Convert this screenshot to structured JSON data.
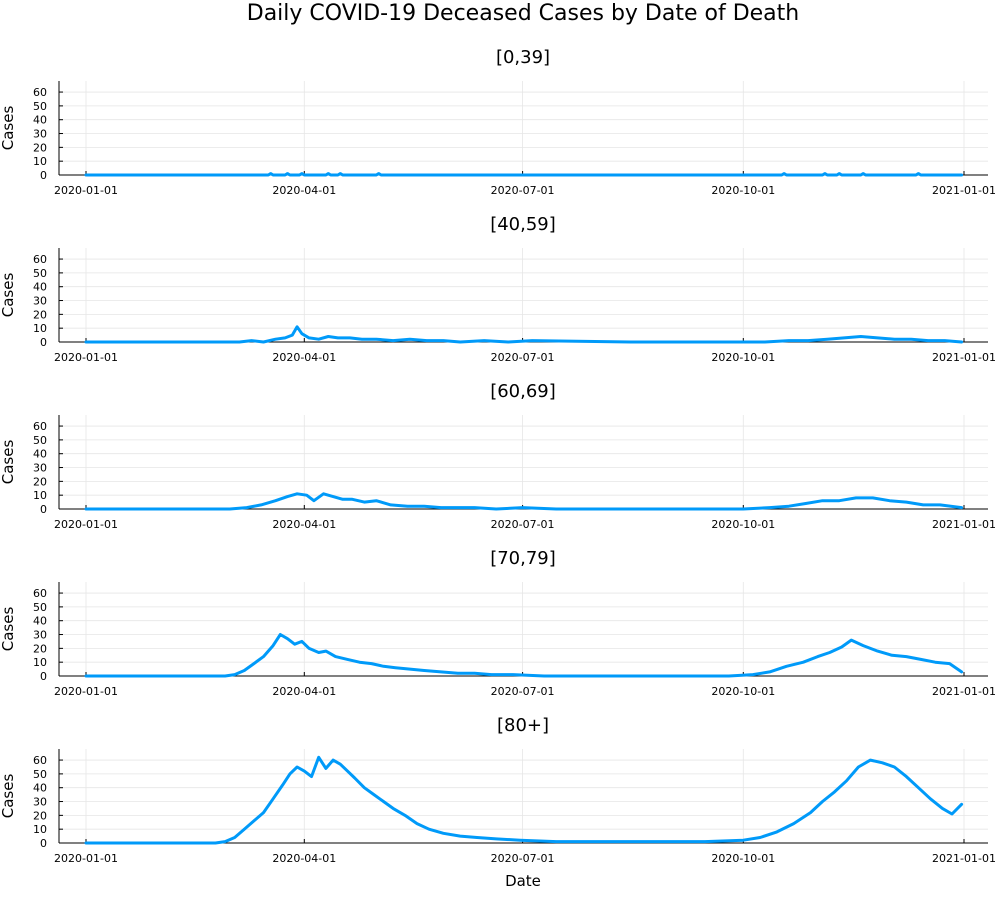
{
  "title": "Daily COVID-19 Deceased Cases by Date of Death",
  "xlabel": "Date",
  "ylabel": "Cases",
  "series_color": "#009af9",
  "chart_data": [
    {
      "type": "line",
      "title": "[0,39]",
      "ylabel": "Cases",
      "xlabel": "",
      "xlim": [
        "2020-01-01",
        "2021-01-01"
      ],
      "x_ticks": [
        "2020-01-01",
        "2020-04-01",
        "2020-07-01",
        "2020-10-01",
        "2021-01-01"
      ],
      "ylim": [
        0,
        68
      ],
      "y_ticks": [
        0,
        10,
        20,
        30,
        40,
        50,
        60
      ],
      "grid": true,
      "series": [
        {
          "x": [
            "2020-01-01",
            "2020-03-17",
            "2020-03-18",
            "2020-03-19",
            "2020-03-24",
            "2020-03-25",
            "2020-03-26",
            "2020-03-30",
            "2020-03-31",
            "2020-04-01",
            "2020-04-10",
            "2020-04-11",
            "2020-04-12",
            "2020-04-15",
            "2020-04-16",
            "2020-04-17",
            "2020-05-01",
            "2020-05-02",
            "2020-05-03",
            "2020-10-17",
            "2020-10-18",
            "2020-10-19",
            "2020-11-03",
            "2020-11-04",
            "2020-11-05",
            "2020-11-09",
            "2020-11-10",
            "2020-11-11",
            "2020-11-19",
            "2020-11-20",
            "2020-11-21",
            "2020-12-12",
            "2020-12-13",
            "2020-12-14",
            "2020-12-31"
          ],
          "y": [
            0,
            0,
            1,
            0,
            0,
            1,
            0,
            0,
            1,
            0,
            0,
            1,
            0,
            0,
            1,
            0,
            0,
            1,
            0,
            0,
            1,
            0,
            0,
            1,
            0,
            0,
            1,
            0,
            0,
            1,
            0,
            0,
            1,
            0,
            0
          ]
        }
      ]
    },
    {
      "type": "line",
      "title": "[40,59]",
      "ylabel": "Cases",
      "xlabel": "",
      "xlim": [
        "2020-01-01",
        "2021-01-01"
      ],
      "x_ticks": [
        "2020-01-01",
        "2020-04-01",
        "2020-07-01",
        "2020-10-01",
        "2021-01-01"
      ],
      "ylim": [
        0,
        68
      ],
      "y_ticks": [
        0,
        10,
        20,
        30,
        40,
        50,
        60
      ],
      "grid": true,
      "series": [
        {
          "x": [
            "2020-01-01",
            "2020-03-05",
            "2020-03-10",
            "2020-03-15",
            "2020-03-20",
            "2020-03-24",
            "2020-03-27",
            "2020-03-29",
            "2020-03-31",
            "2020-04-03",
            "2020-04-07",
            "2020-04-11",
            "2020-04-15",
            "2020-04-20",
            "2020-04-25",
            "2020-05-01",
            "2020-05-08",
            "2020-05-15",
            "2020-05-22",
            "2020-05-29",
            "2020-06-05",
            "2020-06-15",
            "2020-06-25",
            "2020-07-05",
            "2020-08-15",
            "2020-09-20",
            "2020-10-01",
            "2020-10-10",
            "2020-10-20",
            "2020-10-28",
            "2020-11-05",
            "2020-11-12",
            "2020-11-19",
            "2020-11-26",
            "2020-12-03",
            "2020-12-10",
            "2020-12-17",
            "2020-12-24",
            "2020-12-31"
          ],
          "y": [
            0,
            0,
            1,
            0,
            2,
            3,
            5,
            11,
            6,
            3,
            2,
            4,
            3,
            3,
            2,
            2,
            1,
            2,
            1,
            1,
            0,
            1,
            0,
            1,
            0,
            0,
            0,
            0,
            1,
            1,
            2,
            3,
            4,
            3,
            2,
            2,
            1,
            1,
            0
          ]
        }
      ]
    },
    {
      "type": "line",
      "title": "[60,69]",
      "ylabel": "Cases",
      "xlabel": "",
      "xlim": [
        "2020-01-01",
        "2021-01-01"
      ],
      "x_ticks": [
        "2020-01-01",
        "2020-04-01",
        "2020-07-01",
        "2020-10-01",
        "2021-01-01"
      ],
      "ylim": [
        0,
        68
      ],
      "y_ticks": [
        0,
        10,
        20,
        30,
        40,
        50,
        60
      ],
      "grid": true,
      "series": [
        {
          "x": [
            "2020-01-01",
            "2020-03-01",
            "2020-03-08",
            "2020-03-14",
            "2020-03-20",
            "2020-03-25",
            "2020-03-29",
            "2020-04-02",
            "2020-04-05",
            "2020-04-09",
            "2020-04-13",
            "2020-04-17",
            "2020-04-21",
            "2020-04-26",
            "2020-05-01",
            "2020-05-07",
            "2020-05-14",
            "2020-05-21",
            "2020-05-28",
            "2020-06-04",
            "2020-06-11",
            "2020-06-20",
            "2020-07-01",
            "2020-07-15",
            "2020-08-15",
            "2020-09-20",
            "2020-10-01",
            "2020-10-12",
            "2020-10-20",
            "2020-10-27",
            "2020-11-03",
            "2020-11-10",
            "2020-11-17",
            "2020-11-24",
            "2020-12-01",
            "2020-12-08",
            "2020-12-15",
            "2020-12-22",
            "2020-12-31"
          ],
          "y": [
            0,
            0,
            1,
            3,
            6,
            9,
            11,
            10,
            6,
            11,
            9,
            7,
            7,
            5,
            6,
            3,
            2,
            2,
            1,
            1,
            1,
            0,
            1,
            0,
            0,
            0,
            0,
            1,
            2,
            4,
            6,
            6,
            8,
            8,
            6,
            5,
            3,
            3,
            1
          ]
        }
      ]
    },
    {
      "type": "line",
      "title": "[70,79]",
      "ylabel": "Cases",
      "xlabel": "",
      "xlim": [
        "2020-01-01",
        "2021-01-01"
      ],
      "x_ticks": [
        "2020-01-01",
        "2020-04-01",
        "2020-07-01",
        "2020-10-01",
        "2021-01-01"
      ],
      "ylim": [
        0,
        68
      ],
      "y_ticks": [
        0,
        10,
        20,
        30,
        40,
        50,
        60
      ],
      "grid": true,
      "series": [
        {
          "x": [
            "2020-01-01",
            "2020-02-28",
            "2020-03-03",
            "2020-03-07",
            "2020-03-11",
            "2020-03-15",
            "2020-03-19",
            "2020-03-22",
            "2020-03-25",
            "2020-03-28",
            "2020-03-31",
            "2020-04-03",
            "2020-04-07",
            "2020-04-10",
            "2020-04-14",
            "2020-04-19",
            "2020-04-24",
            "2020-04-29",
            "2020-05-04",
            "2020-05-09",
            "2020-05-15",
            "2020-05-21",
            "2020-05-28",
            "2020-06-04",
            "2020-06-11",
            "2020-06-18",
            "2020-06-27",
            "2020-07-10",
            "2020-08-20",
            "2020-09-25",
            "2020-10-05",
            "2020-10-12",
            "2020-10-19",
            "2020-10-26",
            "2020-11-01",
            "2020-11-06",
            "2020-11-11",
            "2020-11-15",
            "2020-11-20",
            "2020-11-26",
            "2020-12-02",
            "2020-12-08",
            "2020-12-14",
            "2020-12-20",
            "2020-12-26",
            "2020-12-31"
          ],
          "y": [
            0,
            0,
            1,
            4,
            9,
            14,
            22,
            30,
            27,
            23,
            25,
            20,
            17,
            18,
            14,
            12,
            10,
            9,
            7,
            6,
            5,
            4,
            3,
            2,
            2,
            1,
            1,
            0,
            0,
            0,
            1,
            3,
            7,
            10,
            14,
            17,
            21,
            26,
            22,
            18,
            15,
            14,
            12,
            10,
            9,
            3
          ]
        }
      ]
    },
    {
      "type": "line",
      "title": "[80+]",
      "ylabel": "Cases",
      "xlabel": "Date",
      "xlim": [
        "2020-01-01",
        "2021-01-01"
      ],
      "x_ticks": [
        "2020-01-01",
        "2020-04-01",
        "2020-07-01",
        "2020-10-01",
        "2021-01-01"
      ],
      "ylim": [
        0,
        68
      ],
      "y_ticks": [
        0,
        10,
        20,
        30,
        40,
        50,
        60
      ],
      "grid": true,
      "series": [
        {
          "x": [
            "2020-01-01",
            "2020-02-24",
            "2020-02-28",
            "2020-03-03",
            "2020-03-07",
            "2020-03-11",
            "2020-03-15",
            "2020-03-19",
            "2020-03-23",
            "2020-03-26",
            "2020-03-29",
            "2020-04-01",
            "2020-04-04",
            "2020-04-07",
            "2020-04-10",
            "2020-04-13",
            "2020-04-16",
            "2020-04-19",
            "2020-04-22",
            "2020-04-26",
            "2020-04-30",
            "2020-05-04",
            "2020-05-08",
            "2020-05-13",
            "2020-05-18",
            "2020-05-23",
            "2020-05-29",
            "2020-06-05",
            "2020-06-12",
            "2020-06-20",
            "2020-06-30",
            "2020-07-15",
            "2020-08-15",
            "2020-09-15",
            "2020-10-01",
            "2020-10-08",
            "2020-10-15",
            "2020-10-22",
            "2020-10-29",
            "2020-11-03",
            "2020-11-08",
            "2020-11-13",
            "2020-11-18",
            "2020-11-23",
            "2020-11-28",
            "2020-12-03",
            "2020-12-08",
            "2020-12-13",
            "2020-12-18",
            "2020-12-23",
            "2020-12-27",
            "2020-12-31"
          ],
          "y": [
            0,
            0,
            1,
            4,
            10,
            16,
            22,
            32,
            42,
            50,
            55,
            52,
            48,
            62,
            54,
            60,
            57,
            52,
            47,
            40,
            35,
            30,
            25,
            20,
            14,
            10,
            7,
            5,
            4,
            3,
            2,
            1,
            1,
            1,
            2,
            4,
            8,
            14,
            22,
            30,
            37,
            45,
            55,
            60,
            58,
            55,
            48,
            40,
            32,
            25,
            21,
            28
          ]
        }
      ]
    }
  ]
}
